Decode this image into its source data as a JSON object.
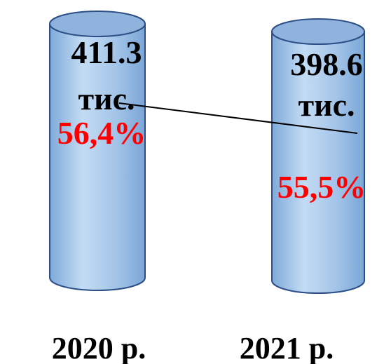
{
  "chart_data": {
    "type": "bar",
    "title": "",
    "xlabel": "",
    "ylabel": "",
    "categories": [
      "2020 р.",
      "2021 р."
    ],
    "values": [
      411.3,
      398.6
    ],
    "value_labels": [
      [
        "411.3",
        "тис."
      ],
      [
        "398.6",
        "тис."
      ]
    ],
    "percent_labels": [
      "56,4%",
      "55,5%"
    ],
    "percent_values": [
      56.4,
      55.5
    ],
    "bar_shape": "cylinder",
    "connector_line": true,
    "colors": {
      "bar_fill": "#a7c8ea",
      "bar_edge": "#2d4f86",
      "bar_top": "#8fb3dd",
      "percent_text": "#ff0000",
      "value_text": "#000000"
    }
  }
}
